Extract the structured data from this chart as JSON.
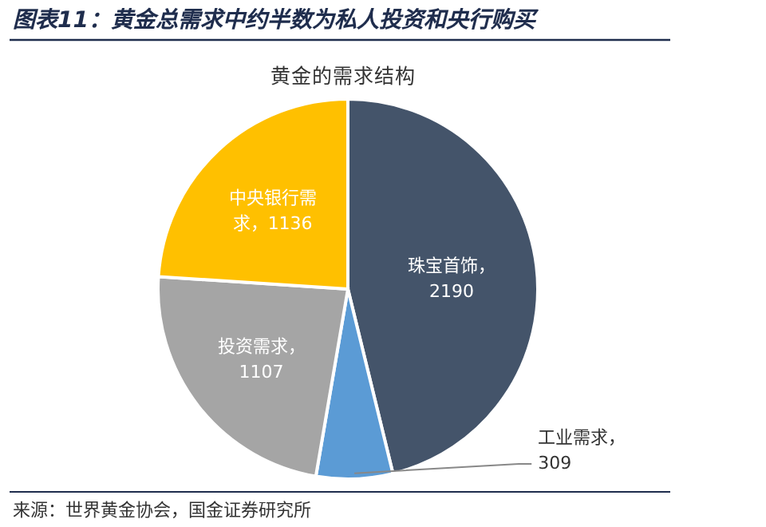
{
  "chart_data": {
    "type": "pie",
    "title": "黄金的需求结构",
    "categories": [
      null,
      null,
      null,
      null
    ],
    "values": [
      2190,
      309,
      1107,
      1136
    ],
    "value_labels": [
      "珠宝首饰，2190",
      "工业需求，309",
      "投资需求，1107",
      "中央银行需求，1136"
    ],
    "colors": [
      "#44546a",
      "#5b9bd5",
      "#a5a5a5",
      "#ffc000"
    ],
    "annotations": [
      "图表11：黄金总需求中约半数为私人投资和央行购买",
      "来源：世界黄金协会，国金证券研究所"
    ]
  }
}
